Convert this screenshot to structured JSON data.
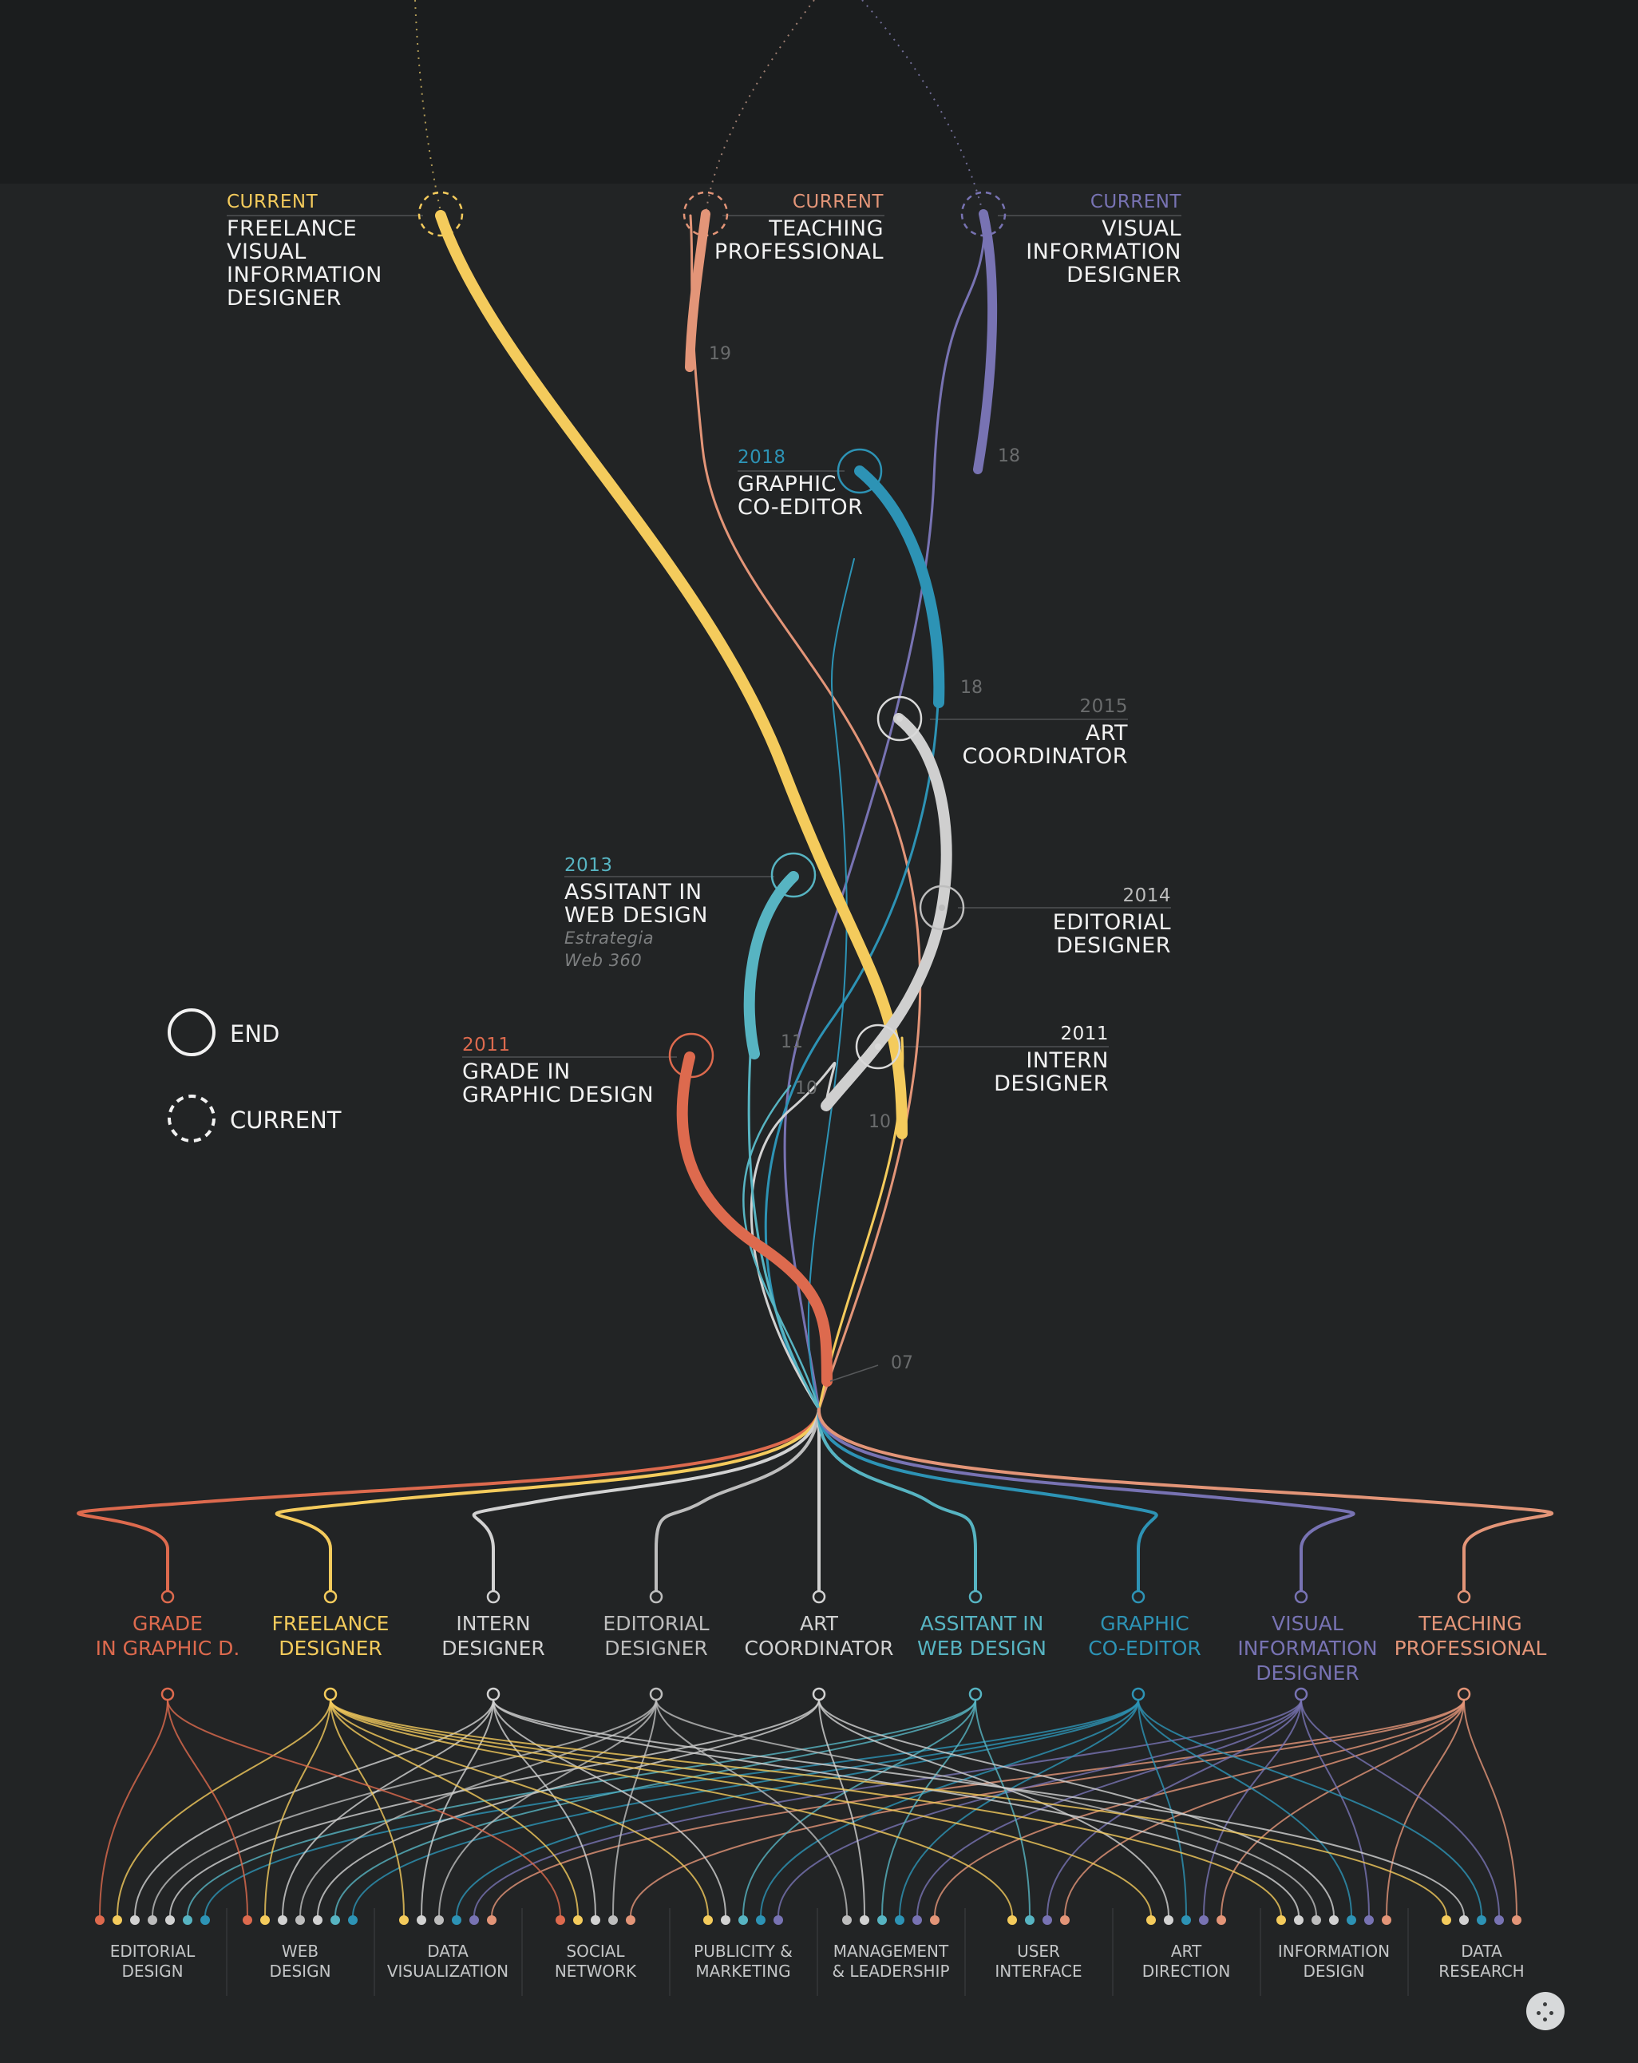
{
  "colors": {
    "background": "#222425",
    "grade": "#dd6a4e",
    "freelance": "#f4cb5c",
    "intern": "#d2d2d2",
    "editorial": "#bdbdbd",
    "art": "#cfcfcf",
    "webdesign": "#57b4c2",
    "coeditor": "#2d93b5",
    "visual": "#7873b3",
    "teaching": "#e39578",
    "muted_number": "#6a6c6d",
    "muted_line": "#56585a"
  },
  "milestones": [
    {
      "id": "freelance",
      "when": "CURRENT",
      "name": "FREELANCE\nVISUAL\nINFORMATION\nDESIGNER",
      "status": "current",
      "color": "#f4cb5c",
      "align": "left"
    },
    {
      "id": "teaching",
      "when": "CURRENT",
      "name": "TEACHING\nPROFESSIONAL",
      "status": "current",
      "color": "#e39578",
      "align": "right"
    },
    {
      "id": "visual",
      "when": "CURRENT",
      "name": "VISUAL\nINFORMATION\nDESIGNER",
      "status": "current",
      "color": "#7873b3",
      "align": "right"
    },
    {
      "id": "coeditor",
      "when": "2018",
      "name": "GRAPHIC\nCO-EDITOR",
      "status": "end",
      "color": "#2d93b5",
      "align": "left"
    },
    {
      "id": "art",
      "when": "2015",
      "name": "ART\nCOORDINATOR",
      "status": "end",
      "color": "#6a6c6d",
      "align": "right"
    },
    {
      "id": "editorial",
      "when": "2014",
      "name": "EDITORIAL\nDESIGNER",
      "status": "end",
      "color": "#bdbdbd",
      "align": "right"
    },
    {
      "id": "webdesign",
      "when": "2013",
      "name": "ASSITANT IN\nWEB DESIGN",
      "sub": "Estrategia\nWeb 360",
      "status": "end",
      "color": "#57b4c2",
      "align": "left"
    },
    {
      "id": "grade",
      "when": "2011",
      "name": "GRADE IN\nGRAPHIC DESIGN",
      "status": "end",
      "color": "#dd6a4e",
      "align": "left"
    },
    {
      "id": "intern",
      "when": "2011",
      "name": "INTERN\nDESIGNER",
      "status": "end",
      "color": "#f2f2f2",
      "align": "right"
    }
  ],
  "year_marks": [
    "19",
    "18",
    "18",
    "11",
    "10",
    "10",
    "07"
  ],
  "legend": [
    {
      "label": "END",
      "style": "solid"
    },
    {
      "label": "CURRENT",
      "style": "dashed"
    }
  ],
  "categories": [
    {
      "id": "grade",
      "label": "GRADE\nIN GRAPHIC D.",
      "color": "#dd6a4e"
    },
    {
      "id": "freelance",
      "label": "FREELANCE\nDESIGNER",
      "color": "#f4cb5c"
    },
    {
      "id": "intern",
      "label": "INTERN\nDESIGNER",
      "color": "#d2d2d2"
    },
    {
      "id": "editorial",
      "label": "EDITORIAL\nDESIGNER",
      "color": "#bdbdbd"
    },
    {
      "id": "art",
      "label": "ART\nCOORDINATOR",
      "color": "#d2d2d2"
    },
    {
      "id": "webdesign",
      "label": "ASSITANT IN\nWEB DESIGN",
      "color": "#57b4c2"
    },
    {
      "id": "coeditor",
      "label": "GRAPHIC\nCO-EDITOR",
      "color": "#2d93b5"
    },
    {
      "id": "visual",
      "label": "VISUAL\nINFORMATION\nDESIGNER",
      "color": "#7873b3"
    },
    {
      "id": "teaching",
      "label": "TEACHING\nPROFESSIONAL",
      "color": "#e39578"
    }
  ],
  "skills": [
    {
      "label": "EDITORIAL\nDESIGN",
      "roles": [
        "grade",
        "freelance",
        "intern",
        "editorial",
        "art",
        "webdesign",
        "coeditor"
      ]
    },
    {
      "label": "WEB\nDESIGN",
      "roles": [
        "grade",
        "freelance",
        "intern",
        "editorial",
        "art",
        "webdesign",
        "coeditor"
      ]
    },
    {
      "label": "DATA\nVISUALIZATION",
      "roles": [
        "freelance",
        "intern",
        "editorial",
        "coeditor",
        "visual",
        "teaching"
      ]
    },
    {
      "label": "SOCIAL\nNETWORK",
      "roles": [
        "grade",
        "freelance",
        "intern",
        "editorial",
        "teaching"
      ]
    },
    {
      "label": "PUBLICITY &\nMARKETING",
      "roles": [
        "freelance",
        "intern",
        "webdesign",
        "coeditor",
        "visual"
      ]
    },
    {
      "label": "MANAGEMENT\n& LEADERSHIP",
      "roles": [
        "editorial",
        "art",
        "webdesign",
        "coeditor",
        "visual",
        "teaching"
      ]
    },
    {
      "label": "USER\nINTERFACE",
      "roles": [
        "freelance",
        "webdesign",
        "visual",
        "teaching"
      ]
    },
    {
      "label": "ART\nDIRECTION",
      "roles": [
        "freelance",
        "art",
        "coeditor",
        "visual",
        "teaching"
      ]
    },
    {
      "label": "INFORMATION\nDESIGN",
      "roles": [
        "freelance",
        "intern",
        "editorial",
        "art",
        "coeditor",
        "visual",
        "teaching"
      ]
    },
    {
      "label": "DATA\nRESEARCH",
      "roles": [
        "freelance",
        "intern",
        "coeditor",
        "visual",
        "teaching"
      ]
    }
  ],
  "menu_button": {
    "icon": "dots-menu-icon"
  }
}
